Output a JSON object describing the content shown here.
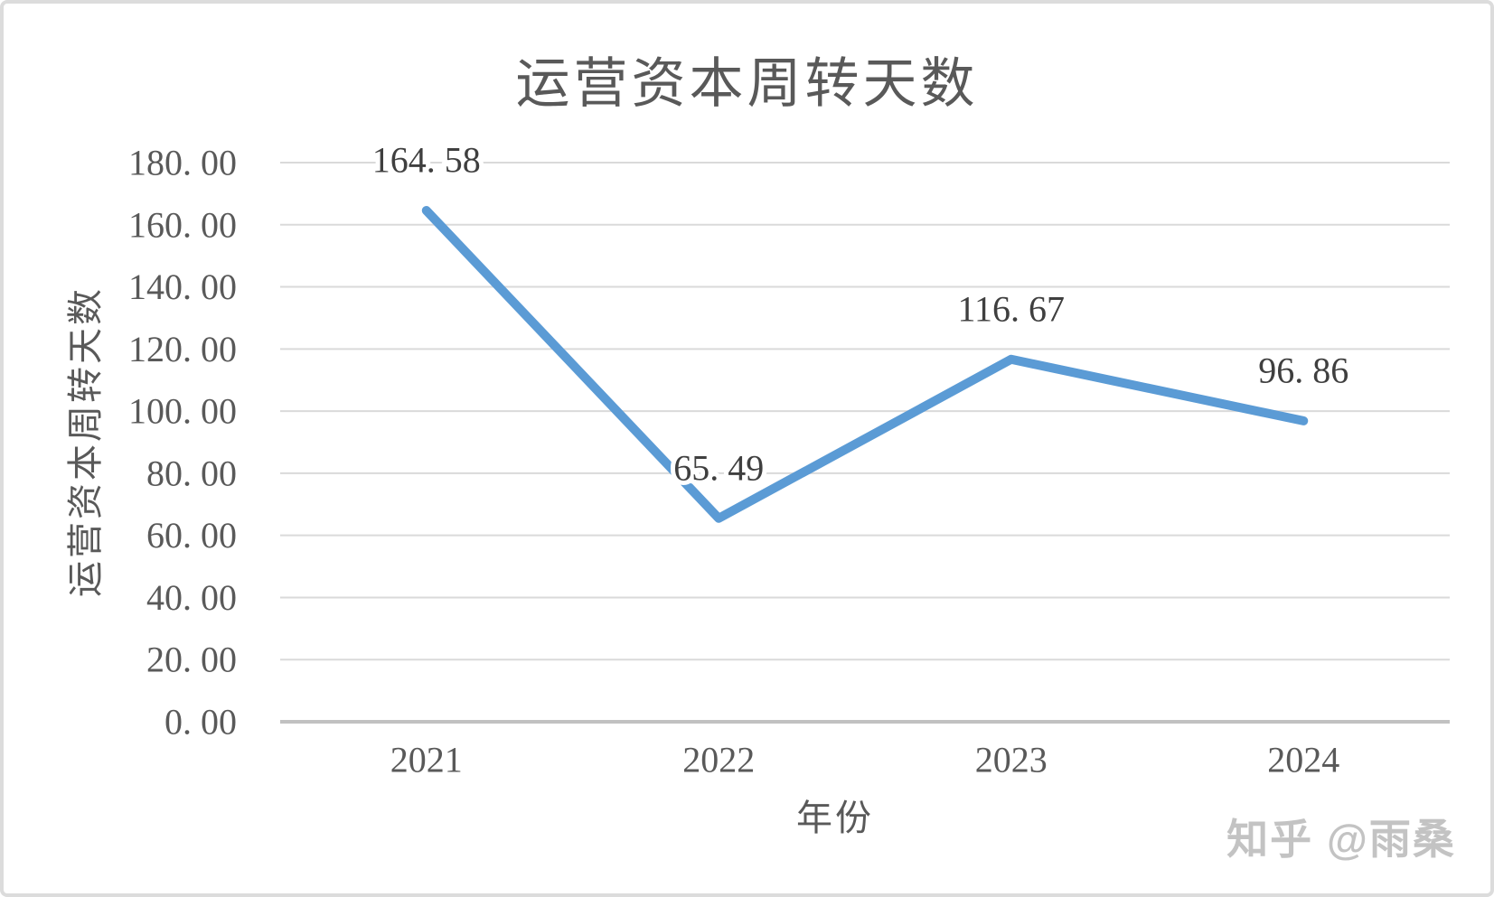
{
  "page": {
    "background": "#ffffff",
    "frame_color": "#dcdcdc"
  },
  "chart_data": {
    "type": "line",
    "title": "运营资本周转天数",
    "categories": [
      "2021",
      "2022",
      "2023",
      "2024"
    ],
    "values": [
      164.58,
      65.49,
      116.67,
      96.86
    ],
    "data_labels": [
      "164. 58",
      "65. 49",
      "116. 67",
      "96. 86"
    ],
    "xlabel": "年份",
    "ylabel": "运营资本周转天数",
    "ylim": [
      0,
      180
    ],
    "ytick_step": 20,
    "ytick_labels": [
      "180. 00",
      "160. 00",
      "140. 00",
      "120. 00",
      "100. 00",
      "80. 00",
      "60. 00",
      "40. 00",
      "20. 00",
      "0. 00"
    ],
    "grid": true,
    "legend": "none",
    "marker": "none"
  },
  "style": {
    "line_color": "#5b9bd5",
    "gridline_color": "#dadada",
    "axis_line_color": "#c1c1c1",
    "tick_label_color": "#595959",
    "category_label_color": "#595959",
    "data_label_color": "#3f3f3f",
    "title_color": "#595959"
  },
  "watermark": {
    "text": "知乎 @雨桑",
    "color": "#c3c3c3"
  }
}
